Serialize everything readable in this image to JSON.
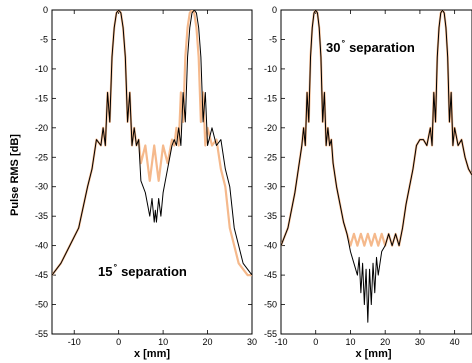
{
  "chart_data": [
    {
      "type": "line",
      "ylabel": "Pulse RMS [dB]",
      "xlabel": "x [mm]",
      "xlim": [
        -15,
        30
      ],
      "ylim": [
        -55,
        0
      ],
      "xticks": [
        -10,
        0,
        10,
        20,
        30
      ],
      "yticks": [
        0,
        -5,
        -10,
        -15,
        -20,
        -25,
        -30,
        -35,
        -40,
        -45,
        -50,
        -55
      ],
      "annotation": {
        "number": "15",
        "degree": "°",
        "text": "separation"
      },
      "series": [
        {
          "color": "#f5b98c",
          "x": [
            -15,
            -13,
            -11,
            -9,
            -7,
            -6,
            -5,
            -4,
            -3.5,
            -3,
            -2.5,
            -2,
            -1.5,
            -1,
            -0.5,
            0,
            0.5,
            1,
            1.5,
            2,
            2.5,
            3,
            3.5,
            4,
            4.5,
            5,
            6,
            7,
            8,
            9,
            10,
            11,
            12,
            12.5,
            13,
            13.5,
            14,
            14.5,
            15,
            15.5,
            16,
            16.5,
            17,
            17.5,
            18,
            18.5,
            19,
            19.5,
            20,
            21,
            22,
            23,
            24,
            25,
            26,
            27,
            28,
            29,
            30
          ],
          "y": [
            -45,
            -43,
            -40,
            -37,
            -30,
            -27,
            -22,
            -23,
            -20,
            -23,
            -14,
            -19,
            -8,
            -3,
            -0.5,
            0,
            -0.5,
            -3,
            -8,
            -19,
            -14,
            -23,
            -20,
            -23,
            -22,
            -26,
            -23,
            -29,
            -23,
            -29,
            -23,
            -26,
            -22,
            -23,
            -20,
            -23,
            -14,
            -19,
            -8,
            -3,
            -0.5,
            0,
            -0.5,
            -3,
            -8,
            -19,
            -14,
            -23,
            -20,
            -23,
            -22,
            -27,
            -30,
            -37,
            -40,
            -43,
            -44,
            -45,
            -45
          ]
        },
        {
          "color": "#000000",
          "x": [
            -15,
            -13,
            -11,
            -9,
            -7,
            -6,
            -5,
            -4,
            -3.5,
            -3,
            -2.5,
            -2,
            -1.5,
            -1,
            -0.5,
            0,
            0.5,
            1,
            1.5,
            2,
            2.5,
            3,
            3.5,
            4,
            4.5,
            5,
            6,
            7,
            7.5,
            8,
            8.25,
            8.5,
            9,
            9.5,
            10,
            10.5,
            11,
            12,
            12.5,
            13,
            13.5,
            14,
            14.5,
            15,
            15.5,
            16,
            16.5,
            17,
            17.5,
            18,
            18.5,
            19,
            19.5,
            20,
            21,
            22,
            23,
            24,
            25,
            26,
            27,
            28,
            29,
            30
          ],
          "y": [
            -45,
            -43,
            -40,
            -37,
            -30,
            -27,
            -22,
            -23,
            -20,
            -23,
            -14,
            -19,
            -8,
            -3,
            -0.5,
            0,
            -0.5,
            -3,
            -8,
            -19,
            -14,
            -23,
            -20,
            -23,
            -22,
            -29,
            -31,
            -35,
            -32,
            -36,
            -34,
            -36,
            -32,
            -35,
            -31,
            -29,
            -27,
            -23,
            -22,
            -23,
            -20,
            -23,
            -14,
            -19,
            -8,
            -3,
            -0.5,
            0,
            -0.5,
            -3,
            -8,
            -19,
            -14,
            -23,
            -20,
            -23,
            -22,
            -27,
            -30,
            -37,
            -40,
            -43,
            -44,
            -45
          ]
        }
      ]
    },
    {
      "type": "line",
      "ylabel": "",
      "xlabel": "x [mm]",
      "xlim": [
        -10,
        45
      ],
      "ylim": [
        -55,
        0
      ],
      "xticks": [
        -10,
        0,
        10,
        20,
        30,
        40
      ],
      "yticks": [
        0,
        -5,
        -10,
        -15,
        -20,
        -25,
        -30,
        -35,
        -40,
        -45,
        -50,
        -55
      ],
      "annotation": {
        "number": "30",
        "degree": "°",
        "text": "separation"
      },
      "series": [
        {
          "color": "#f5b98c",
          "x": [
            -10,
            -8,
            -6,
            -5,
            -4,
            -3.5,
            -3,
            -2.5,
            -2,
            -1.5,
            -1,
            -0.5,
            0,
            0.5,
            1,
            1.5,
            2,
            2.5,
            3,
            3.5,
            4,
            4.5,
            5,
            6,
            7,
            8,
            9,
            10,
            11,
            12,
            13,
            14,
            15,
            16,
            17,
            18,
            19,
            20,
            21,
            22,
            23,
            24,
            25,
            26,
            27,
            28,
            29,
            30,
            31,
            32,
            33,
            33.5,
            34,
            34.5,
            35,
            35.5,
            36,
            36.5,
            37,
            37.5,
            38,
            38.5,
            39,
            39.5,
            40,
            41,
            42,
            43,
            44,
            45
          ],
          "y": [
            -40,
            -37,
            -31,
            -27,
            -23,
            -20,
            -23,
            -14,
            -19,
            -8,
            -3,
            -0.5,
            0,
            -0.5,
            -3,
            -8,
            -19,
            -14,
            -23,
            -20,
            -23,
            -22,
            -26,
            -30,
            -33,
            -36,
            -38,
            -40,
            -38,
            -40,
            -38,
            -40,
            -38,
            -40,
            -38,
            -40,
            -38,
            -40,
            -38,
            -40,
            -38,
            -40,
            -37,
            -33,
            -30,
            -27,
            -23,
            -22,
            -22,
            -23,
            -20,
            -23,
            -14,
            -19,
            -8,
            -3,
            -0.5,
            0,
            -0.5,
            -3,
            -8,
            -19,
            -14,
            -23,
            -20,
            -23,
            -22,
            -25,
            -27,
            -28
          ]
        },
        {
          "color": "#000000",
          "x": [
            -10,
            -8,
            -6,
            -5,
            -4,
            -3.5,
            -3,
            -2.5,
            -2,
            -1.5,
            -1,
            -0.5,
            0,
            0.5,
            1,
            1.5,
            2,
            2.5,
            3,
            3.5,
            4,
            4.5,
            5,
            6,
            7,
            8,
            9,
            10,
            11,
            12,
            12.5,
            13,
            13.5,
            14,
            14.5,
            15,
            15.5,
            16,
            16.5,
            17,
            17.5,
            18,
            18.5,
            19,
            20,
            21,
            22,
            23,
            24,
            25,
            26,
            27,
            28,
            29,
            30,
            31,
            32,
            33,
            33.5,
            34,
            34.5,
            35,
            35.5,
            36,
            36.5,
            37,
            37.5,
            38,
            38.5,
            39,
            39.5,
            40,
            41,
            42,
            43,
            44,
            45
          ],
          "y": [
            -40,
            -37,
            -31,
            -27,
            -23,
            -20,
            -23,
            -14,
            -19,
            -8,
            -3,
            -0.5,
            0,
            -0.5,
            -3,
            -8,
            -19,
            -14,
            -23,
            -20,
            -23,
            -22,
            -26,
            -30,
            -33,
            -36,
            -38,
            -41,
            -43,
            -45,
            -42,
            -48,
            -43,
            -50,
            -44,
            -53,
            -44,
            -50,
            -43,
            -48,
            -42,
            -45,
            -43,
            -41,
            -40,
            -38,
            -40,
            -38,
            -40,
            -37,
            -33,
            -30,
            -27,
            -23,
            -22,
            -22,
            -23,
            -20,
            -23,
            -14,
            -19,
            -8,
            -3,
            -0.5,
            0,
            -0.5,
            -3,
            -8,
            -19,
            -14,
            -23,
            -20,
            -23,
            -22,
            -25,
            -27,
            -28
          ]
        }
      ]
    }
  ]
}
